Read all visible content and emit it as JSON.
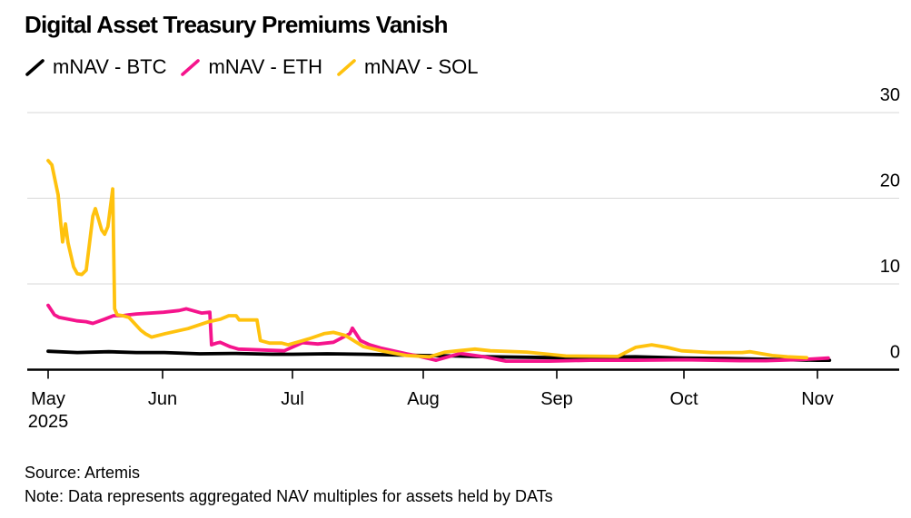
{
  "header": {
    "title": "Digital Asset Treasury Premiums Vanish"
  },
  "legend": [
    {
      "id": "btc",
      "label": "mNAV - BTC",
      "color": "#000000"
    },
    {
      "id": "eth",
      "label": "mNAV - ETH",
      "color": "#f5148c"
    },
    {
      "id": "sol",
      "label": "mNAV - SOL",
      "color": "#ffc20e"
    }
  ],
  "footer": {
    "source": "Source: Artemis",
    "note": "Note: Data represents aggregated NAV multiples for assets held by DATs"
  },
  "chart_data": {
    "type": "line",
    "title": "Digital Asset Treasury Premiums Vanish",
    "xlabel": "",
    "ylabel": "",
    "x_unit": "days since May 1, 2025",
    "ylim": [
      0,
      31.5
    ],
    "grid": true,
    "grid_color": "#d8d8d8",
    "axis_color": "#000000",
    "background": "#ffffff",
    "legend_position": "top-left",
    "y_axis": {
      "side": "right",
      "ticks": [
        0,
        10,
        20,
        30
      ]
    },
    "x_axis": {
      "ticks": [
        {
          "label": "May",
          "sub_label": "2025",
          "day": 0
        },
        {
          "label": "Jun",
          "day": 31
        },
        {
          "label": "Jul",
          "day": 61
        },
        {
          "label": "Aug",
          "day": 92
        },
        {
          "label": "Sep",
          "day": 123
        },
        {
          "label": "Oct",
          "day": 153
        },
        {
          "label": "Nov",
          "day": 184
        }
      ]
    },
    "series": [
      {
        "name": "mNAV - BTC",
        "id": "btc",
        "color": "#000000",
        "points": [
          [
            0,
            2.15
          ],
          [
            7.9,
            2.0
          ],
          [
            16.4,
            2.1
          ],
          [
            23.9,
            2.0
          ],
          [
            31.4,
            2.0
          ],
          [
            39.6,
            1.85
          ],
          [
            48.0,
            1.9
          ],
          [
            56.4,
            1.8
          ],
          [
            61.0,
            1.8
          ],
          [
            69.2,
            1.85
          ],
          [
            77.8,
            1.8
          ],
          [
            86.4,
            1.7
          ],
          [
            92.0,
            1.65
          ],
          [
            99.1,
            1.6
          ],
          [
            107.6,
            1.5
          ],
          [
            116.0,
            1.45
          ],
          [
            123.0,
            1.4
          ],
          [
            130.9,
            1.45
          ],
          [
            141.6,
            1.5
          ],
          [
            153.0,
            1.35
          ],
          [
            162.9,
            1.3
          ],
          [
            173.5,
            1.2
          ],
          [
            184.0,
            1.1
          ],
          [
            186.8,
            1.1
          ]
        ]
      },
      {
        "name": "mNAV - ETH",
        "id": "eth",
        "color": "#f5148c",
        "points": [
          [
            0,
            7.5
          ],
          [
            1.7,
            6.4
          ],
          [
            3.0,
            6.1
          ],
          [
            5.4,
            5.9
          ],
          [
            7.9,
            5.7
          ],
          [
            10.3,
            5.6
          ],
          [
            12.1,
            5.4
          ],
          [
            15.3,
            5.9
          ],
          [
            17.7,
            6.3
          ],
          [
            20.2,
            6.3
          ],
          [
            21.9,
            6.4
          ],
          [
            23.9,
            6.5
          ],
          [
            31.2,
            6.7
          ],
          [
            34.8,
            6.9
          ],
          [
            36.5,
            7.1
          ],
          [
            40.0,
            6.6
          ],
          [
            41.9,
            6.7
          ],
          [
            42.3,
            2.9
          ],
          [
            43.5,
            3.1
          ],
          [
            44.3,
            3.2
          ],
          [
            46.5,
            2.7
          ],
          [
            48.5,
            2.4
          ],
          [
            54.0,
            2.3
          ],
          [
            59.1,
            2.2
          ],
          [
            63.4,
            3.15
          ],
          [
            67.0,
            3.0
          ],
          [
            70.7,
            3.2
          ],
          [
            74.6,
            4.2
          ],
          [
            75.2,
            4.85
          ],
          [
            77.1,
            3.4
          ],
          [
            79.3,
            2.9
          ],
          [
            82.1,
            2.5
          ],
          [
            88.0,
            1.85
          ],
          [
            90.7,
            1.6
          ],
          [
            95.0,
            1.1
          ],
          [
            100.6,
            1.9
          ],
          [
            106.1,
            1.5
          ],
          [
            111.2,
            1.0
          ],
          [
            121.3,
            1.0
          ],
          [
            130.9,
            1.1
          ],
          [
            141.6,
            1.1
          ],
          [
            153.4,
            1.15
          ],
          [
            166.1,
            1.05
          ],
          [
            172.0,
            1.05
          ],
          [
            180.8,
            1.2
          ],
          [
            186.5,
            1.35
          ]
        ]
      },
      {
        "name": "mNAV - SOL",
        "id": "sol",
        "color": "#ffc20e",
        "points": [
          [
            0,
            24.4
          ],
          [
            1,
            23.9
          ],
          [
            2.7,
            20.4
          ],
          [
            3.4,
            17.2
          ],
          [
            3.9,
            14.9
          ],
          [
            4.7,
            17.0
          ],
          [
            5.4,
            14.8
          ],
          [
            6.9,
            12.0
          ],
          [
            7.9,
            11.2
          ],
          [
            9.1,
            11.1
          ],
          [
            10.3,
            11.6
          ],
          [
            12.1,
            17.9
          ],
          [
            12.8,
            18.8
          ],
          [
            14.5,
            16.3
          ],
          [
            15.3,
            15.8
          ],
          [
            16.2,
            16.7
          ],
          [
            17.5,
            21.1
          ],
          [
            18.0,
            7.1
          ],
          [
            18.7,
            6.4
          ],
          [
            20.2,
            6.3
          ],
          [
            21.9,
            6.1
          ],
          [
            25.1,
            4.6
          ],
          [
            26.3,
            4.2
          ],
          [
            28.0,
            3.8
          ],
          [
            31.6,
            4.2
          ],
          [
            36.9,
            4.8
          ],
          [
            41.7,
            5.6
          ],
          [
            44.4,
            5.9
          ],
          [
            46.3,
            6.3
          ],
          [
            48.0,
            6.3
          ],
          [
            48.7,
            5.8
          ],
          [
            52.8,
            5.8
          ],
          [
            53.6,
            3.4
          ],
          [
            55.7,
            3.1
          ],
          [
            58.5,
            3.1
          ],
          [
            60.0,
            2.9
          ],
          [
            62.8,
            3.3
          ],
          [
            64.9,
            3.6
          ],
          [
            68.5,
            4.2
          ],
          [
            70.7,
            4.35
          ],
          [
            73.5,
            4.0
          ],
          [
            77.8,
            2.7
          ],
          [
            82.1,
            2.2
          ],
          [
            88.0,
            1.65
          ],
          [
            93.5,
            1.5
          ],
          [
            97.1,
            2.05
          ],
          [
            104.0,
            2.4
          ],
          [
            107.6,
            2.2
          ],
          [
            116.0,
            2.05
          ],
          [
            125.1,
            1.6
          ],
          [
            137.4,
            1.55
          ],
          [
            141.6,
            2.6
          ],
          [
            145.4,
            2.9
          ],
          [
            149.0,
            2.6
          ],
          [
            152.4,
            2.2
          ],
          [
            159.3,
            2.0
          ],
          [
            166.5,
            2.0
          ],
          [
            168.4,
            2.1
          ],
          [
            173.5,
            1.65
          ],
          [
            177.0,
            1.5
          ],
          [
            181.5,
            1.4
          ]
        ]
      }
    ]
  }
}
